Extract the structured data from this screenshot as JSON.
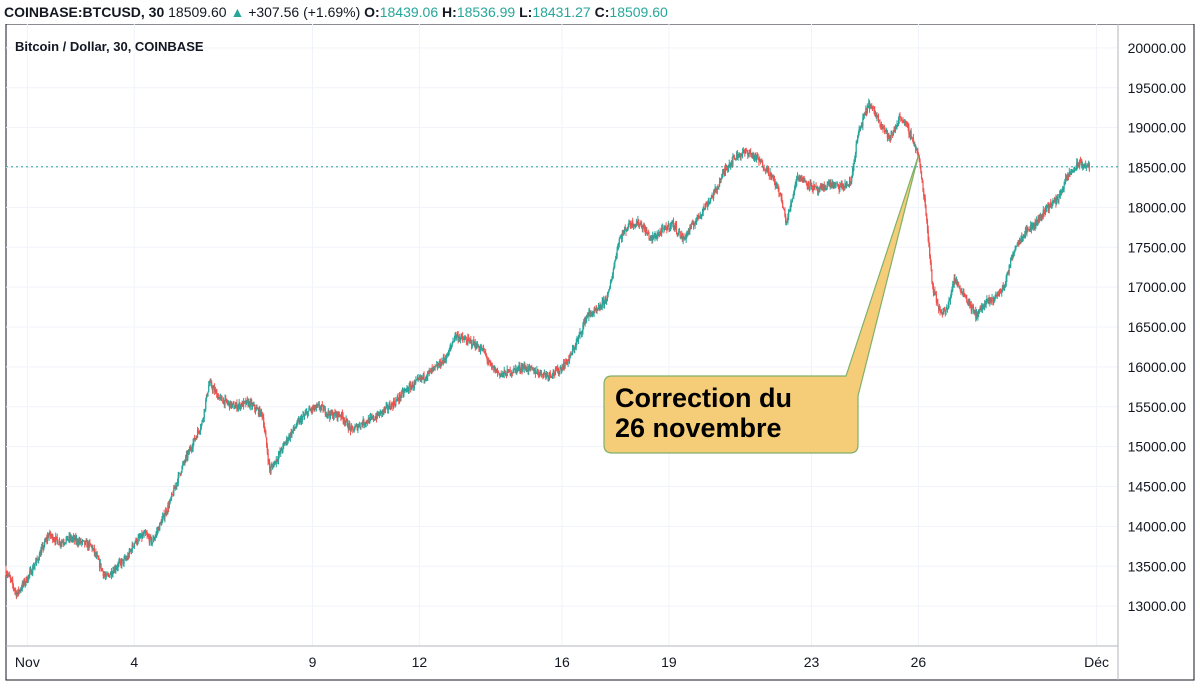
{
  "header": {
    "symbol": "COINBASE:BTCUSD, 30",
    "last": "18509.60",
    "arrow": "▲",
    "change": "+307.56 (+1.69%)",
    "o_label": "O:",
    "o_value": "18439.06",
    "h_label": "H:",
    "h_value": "18536.99",
    "l_label": "L:",
    "l_value": "18431.27",
    "c_label": "C:",
    "c_value": "18509.60"
  },
  "chart_data": {
    "type": "candlestick",
    "title": "Bitcoin / Dollar, 30, COINBASE",
    "y_ticks": [
      "20000.00",
      "19500.00",
      "19000.00",
      "18500.00",
      "18000.00",
      "17500.00",
      "17000.00",
      "16500.00",
      "16000.00",
      "15500.00",
      "15000.00",
      "14500.00",
      "14000.00",
      "13500.00",
      "13000.00"
    ],
    "x_ticks": [
      {
        "label": "Nov",
        "day": 1
      },
      {
        "label": "4",
        "day": 4
      },
      {
        "label": "9",
        "day": 9
      },
      {
        "label": "12",
        "day": 12
      },
      {
        "label": "16",
        "day": 16
      },
      {
        "label": "19",
        "day": 19
      },
      {
        "label": "23",
        "day": 23
      },
      {
        "label": "26",
        "day": 26
      },
      {
        "label": "Déc",
        "day": 31
      }
    ],
    "ylim": [
      12500,
      20300
    ],
    "xlim": [
      0.4,
      31.6
    ],
    "last_price": 18509.6,
    "grid": true,
    "colors": {
      "up": "#26a69a",
      "down": "#ef5350",
      "last_line": "#26a69a",
      "callout_fill": "#f5cd78",
      "callout_border": "#7fb069"
    },
    "annotation": {
      "line1": "Correction du",
      "line2": "26 novembre",
      "target_day": 26.0,
      "target_price": 18650
    },
    "price_path": [
      [
        0.4,
        13450
      ],
      [
        0.7,
        13150
      ],
      [
        1.0,
        13350
      ],
      [
        1.3,
        13600
      ],
      [
        1.6,
        13900
      ],
      [
        1.9,
        13800
      ],
      [
        2.2,
        13850
      ],
      [
        2.5,
        13800
      ],
      [
        2.8,
        13750
      ],
      [
        3.0,
        13550
      ],
      [
        3.2,
        13350
      ],
      [
        3.5,
        13500
      ],
      [
        3.8,
        13600
      ],
      [
        4.0,
        13800
      ],
      [
        4.3,
        13900
      ],
      [
        4.5,
        13800
      ],
      [
        4.7,
        14000
      ],
      [
        5.0,
        14300
      ],
      [
        5.3,
        14700
      ],
      [
        5.6,
        15000
      ],
      [
        5.9,
        15300
      ],
      [
        6.1,
        15800
      ],
      [
        6.4,
        15600
      ],
      [
        6.8,
        15500
      ],
      [
        7.2,
        15550
      ],
      [
        7.6,
        15400
      ],
      [
        7.8,
        14700
      ],
      [
        8.0,
        14850
      ],
      [
        8.3,
        15100
      ],
      [
        8.6,
        15300
      ],
      [
        8.9,
        15450
      ],
      [
        9.2,
        15500
      ],
      [
        9.5,
        15400
      ],
      [
        9.8,
        15400
      ],
      [
        10.1,
        15200
      ],
      [
        10.4,
        15300
      ],
      [
        10.7,
        15350
      ],
      [
        11.0,
        15450
      ],
      [
        11.3,
        15550
      ],
      [
        11.6,
        15700
      ],
      [
        11.9,
        15800
      ],
      [
        12.2,
        15900
      ],
      [
        12.5,
        16000
      ],
      [
        12.8,
        16150
      ],
      [
        13.0,
        16400
      ],
      [
        13.2,
        16350
      ],
      [
        13.5,
        16300
      ],
      [
        13.8,
        16200
      ],
      [
        14.0,
        16000
      ],
      [
        14.3,
        15900
      ],
      [
        14.6,
        15950
      ],
      [
        14.9,
        16000
      ],
      [
        15.2,
        15950
      ],
      [
        15.6,
        15900
      ],
      [
        15.9,
        15950
      ],
      [
        16.2,
        16100
      ],
      [
        16.5,
        16400
      ],
      [
        16.7,
        16650
      ],
      [
        17.0,
        16700
      ],
      [
        17.3,
        16900
      ],
      [
        17.6,
        17600
      ],
      [
        17.9,
        17800
      ],
      [
        18.2,
        17800
      ],
      [
        18.5,
        17600
      ],
      [
        18.8,
        17700
      ],
      [
        19.1,
        17800
      ],
      [
        19.4,
        17600
      ],
      [
        19.7,
        17800
      ],
      [
        20.0,
        18000
      ],
      [
        20.3,
        18200
      ],
      [
        20.6,
        18500
      ],
      [
        20.9,
        18650
      ],
      [
        21.2,
        18700
      ],
      [
        21.5,
        18600
      ],
      [
        21.8,
        18450
      ],
      [
        22.1,
        18200
      ],
      [
        22.3,
        17800
      ],
      [
        22.6,
        18400
      ],
      [
        22.9,
        18300
      ],
      [
        23.2,
        18200
      ],
      [
        23.5,
        18300
      ],
      [
        23.8,
        18250
      ],
      [
        24.1,
        18300
      ],
      [
        24.3,
        18900
      ],
      [
        24.6,
        19300
      ],
      [
        24.9,
        19100
      ],
      [
        25.2,
        18850
      ],
      [
        25.5,
        19150
      ],
      [
        25.8,
        18900
      ],
      [
        26.0,
        18650
      ],
      [
        26.2,
        18000
      ],
      [
        26.4,
        17000
      ],
      [
        26.6,
        16700
      ],
      [
        26.8,
        16700
      ],
      [
        27.0,
        17100
      ],
      [
        27.3,
        16900
      ],
      [
        27.6,
        16650
      ],
      [
        27.9,
        16800
      ],
      [
        28.1,
        16850
      ],
      [
        28.4,
        17000
      ],
      [
        28.7,
        17500
      ],
      [
        29.0,
        17700
      ],
      [
        29.3,
        17800
      ],
      [
        29.6,
        18000
      ],
      [
        29.9,
        18100
      ],
      [
        30.2,
        18400
      ],
      [
        30.5,
        18550
      ],
      [
        30.8,
        18509
      ]
    ]
  }
}
